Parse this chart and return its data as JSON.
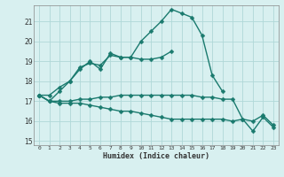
{
  "xlabel": "Humidex (Indice chaleur)",
  "x": [
    0,
    1,
    2,
    3,
    4,
    5,
    6,
    7,
    8,
    9,
    10,
    11,
    12,
    13,
    14,
    15,
    16,
    17,
    18,
    19,
    20,
    21,
    22,
    23
  ],
  "line1": [
    17.3,
    17.3,
    17.7,
    18.0,
    18.6,
    19.0,
    18.6,
    19.4,
    19.2,
    19.2,
    20.0,
    20.5,
    21.0,
    21.6,
    21.4,
    21.2,
    20.3,
    18.3,
    17.5,
    null,
    null,
    null,
    null,
    null
  ],
  "line2": [
    17.3,
    17.0,
    17.5,
    18.0,
    18.7,
    18.9,
    18.8,
    19.3,
    19.2,
    19.2,
    19.1,
    19.1,
    19.2,
    19.5,
    null,
    null,
    null,
    null,
    null,
    null,
    null,
    null,
    null,
    null
  ],
  "line3": [
    17.3,
    17.0,
    17.0,
    17.0,
    17.1,
    17.1,
    17.2,
    17.2,
    17.3,
    17.3,
    17.3,
    17.3,
    17.3,
    17.3,
    17.3,
    17.3,
    17.2,
    17.2,
    17.1,
    17.1,
    16.1,
    16.0,
    16.3,
    15.8
  ],
  "line4": [
    17.3,
    17.0,
    16.9,
    16.9,
    16.9,
    16.8,
    16.7,
    16.6,
    16.5,
    16.5,
    16.4,
    16.3,
    16.2,
    16.1,
    16.1,
    16.1,
    16.1,
    16.1,
    16.1,
    16.0,
    16.1,
    15.5,
    16.2,
    15.7
  ],
  "color": "#1a7a6e",
  "bg_color": "#d8f0f0",
  "grid_color": "#b0d8d8",
  "ylim": [
    14.8,
    21.8
  ],
  "yticks": [
    15,
    16,
    17,
    18,
    19,
    20,
    21
  ],
  "xticks": [
    0,
    1,
    2,
    3,
    4,
    5,
    6,
    7,
    8,
    9,
    10,
    11,
    12,
    13,
    14,
    15,
    16,
    17,
    18,
    19,
    20,
    21,
    22,
    23
  ],
  "markersize": 2.5,
  "linewidth": 1.0
}
